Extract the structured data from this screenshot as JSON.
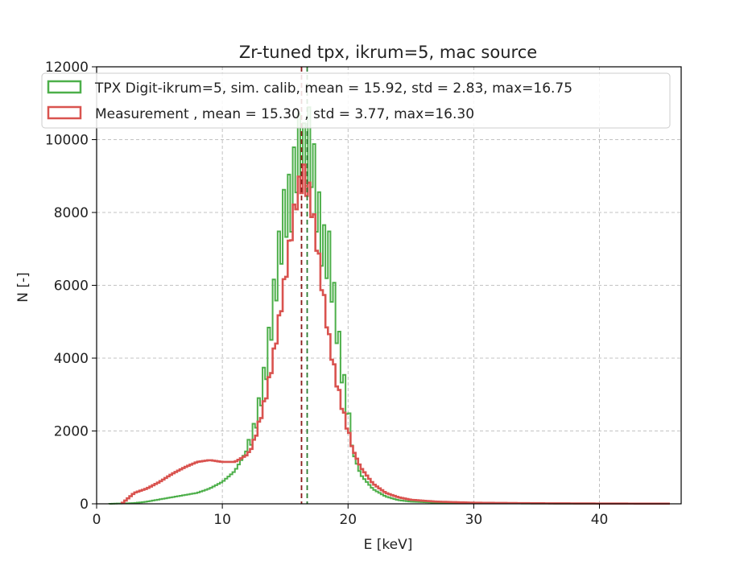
{
  "chart_data": {
    "type": "histogram-step",
    "title": "Zr-tuned tpx, ikrum=5, mac source",
    "xlabel": "E [keV]",
    "ylabel": "N [-]",
    "xlim": [
      0,
      46.5
    ],
    "ylim": [
      0,
      12000
    ],
    "xticks": [
      0,
      10,
      20,
      30,
      40
    ],
    "yticks": [
      0,
      2000,
      4000,
      6000,
      8000,
      10000,
      12000
    ],
    "grid": true,
    "legend_position": "top",
    "series": [
      {
        "name": "TPX Digit-ikrum=5, sim. calib, mean = 15.92, std = 2.83, max=16.75",
        "color": "#4daf4a",
        "points": [
          [
            1,
            0
          ],
          [
            3,
            20
          ],
          [
            4,
            60
          ],
          [
            5,
            120
          ],
          [
            6,
            180
          ],
          [
            7,
            240
          ],
          [
            8,
            300
          ],
          [
            9,
            420
          ],
          [
            10,
            600
          ],
          [
            11,
            900
          ],
          [
            12,
            1500
          ],
          [
            12.5,
            2000
          ],
          [
            13,
            2800
          ],
          [
            13.5,
            3800
          ],
          [
            14,
            5300
          ],
          [
            14.5,
            6800
          ],
          [
            15,
            8100
          ],
          [
            15.5,
            8300
          ],
          [
            16,
            9800
          ],
          [
            16.5,
            9500
          ],
          [
            17,
            10000
          ],
          [
            17.5,
            8300
          ],
          [
            18,
            7000
          ],
          [
            18.5,
            6800
          ],
          [
            19,
            5200
          ],
          [
            19.5,
            3700
          ],
          [
            20,
            2500
          ],
          [
            20.5,
            1300
          ],
          [
            21,
            800
          ],
          [
            22,
            400
          ],
          [
            23,
            200
          ],
          [
            24,
            100
          ],
          [
            25,
            60
          ],
          [
            27,
            30
          ],
          [
            30,
            15
          ],
          [
            35,
            8
          ],
          [
            40,
            4
          ],
          [
            44,
            2
          ]
        ]
      },
      {
        "name": "Measurement , mean = 15.30 , std = 3.77, max=16.30",
        "color": "#d9534f",
        "points": [
          [
            2,
            0
          ],
          [
            3,
            300
          ],
          [
            4,
            420
          ],
          [
            5,
            600
          ],
          [
            6,
            820
          ],
          [
            7,
            1000
          ],
          [
            8,
            1150
          ],
          [
            9,
            1200
          ],
          [
            10,
            1150
          ],
          [
            11,
            1150
          ],
          [
            12,
            1350
          ],
          [
            12.5,
            1700
          ],
          [
            13,
            2300
          ],
          [
            13.5,
            3000
          ],
          [
            14,
            3900
          ],
          [
            14.5,
            5000
          ],
          [
            15,
            6200
          ],
          [
            15.5,
            7500
          ],
          [
            16,
            8600
          ],
          [
            16.5,
            9000
          ],
          [
            17,
            8400
          ],
          [
            17.5,
            7200
          ],
          [
            18,
            5800
          ],
          [
            18.5,
            4500
          ],
          [
            19,
            3500
          ],
          [
            19.5,
            2700
          ],
          [
            20,
            2000
          ],
          [
            20.5,
            1400
          ],
          [
            21,
            1000
          ],
          [
            22,
            550
          ],
          [
            23,
            300
          ],
          [
            24,
            180
          ],
          [
            25,
            110
          ],
          [
            27,
            60
          ],
          [
            30,
            30
          ],
          [
            35,
            15
          ],
          [
            40,
            8
          ],
          [
            44,
            4
          ]
        ]
      }
    ],
    "vlines": [
      {
        "x": 16.3,
        "color": "#8b1a1a",
        "style": "dashed"
      },
      {
        "x": 16.75,
        "color": "#2e7d32",
        "style": "dashed"
      }
    ]
  }
}
